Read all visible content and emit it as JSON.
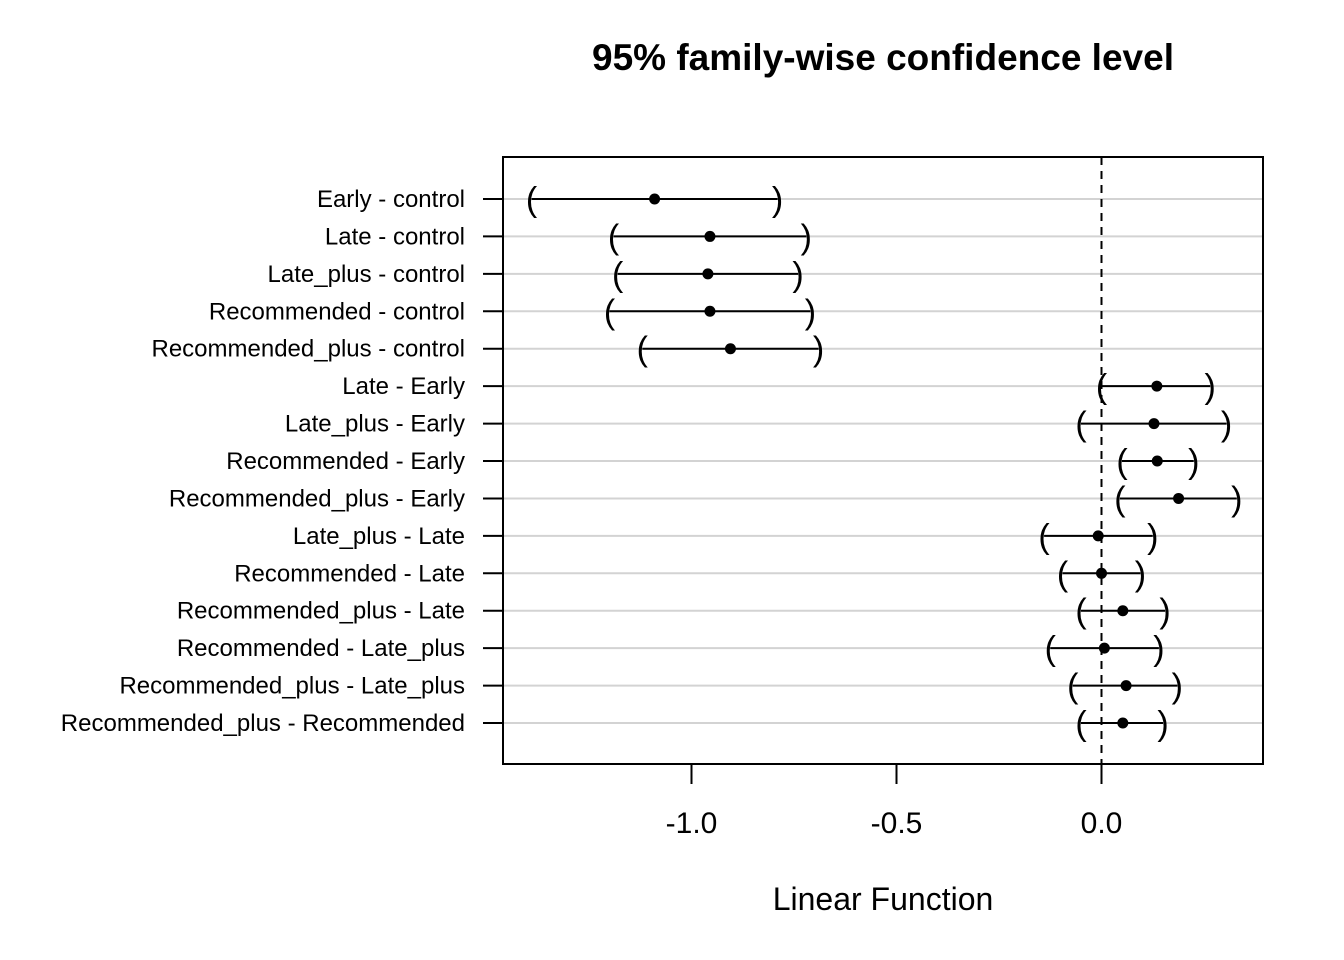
{
  "chart_data": {
    "type": "interval",
    "title": "95% family-wise confidence level",
    "xlabel": "Linear Function",
    "ylabel": "",
    "xlim": [
      -1.46,
      0.4
    ],
    "x_ticks": [
      -1.0,
      -0.5,
      0.0
    ],
    "x_tick_labels": [
      "-1.0",
      "-0.5",
      "0.0"
    ],
    "reference_line": 0.0,
    "grid": "horizontal",
    "comparisons": [
      {
        "label": "Early - control",
        "estimate": -1.09,
        "lower": -1.39,
        "upper": -0.79
      },
      {
        "label": "Late - control",
        "estimate": -0.955,
        "lower": -1.19,
        "upper": -0.72
      },
      {
        "label": "Late_plus - control",
        "estimate": -0.96,
        "lower": -1.18,
        "upper": -0.74
      },
      {
        "label": "Recommended - control",
        "estimate": -0.955,
        "lower": -1.2,
        "upper": -0.71
      },
      {
        "label": "Recommended_plus - control",
        "estimate": -0.905,
        "lower": -1.12,
        "upper": -0.69
      },
      {
        "label": "Late - Early",
        "estimate": 0.135,
        "lower": 0.0,
        "upper": 0.265
      },
      {
        "label": "Late_plus - Early",
        "estimate": 0.128,
        "lower": -0.05,
        "upper": 0.305
      },
      {
        "label": "Recommended - Early",
        "estimate": 0.136,
        "lower": 0.05,
        "upper": 0.225
      },
      {
        "label": "Recommended_plus - Early",
        "estimate": 0.188,
        "lower": 0.045,
        "upper": 0.33
      },
      {
        "label": "Late_plus - Late",
        "estimate": -0.008,
        "lower": -0.14,
        "upper": 0.125
      },
      {
        "label": "Recommended - Late",
        "estimate": 0.0,
        "lower": -0.095,
        "upper": 0.095
      },
      {
        "label": "Recommended_plus - Late",
        "estimate": 0.052,
        "lower": -0.05,
        "upper": 0.155
      },
      {
        "label": "Recommended - Late_plus",
        "estimate": 0.007,
        "lower": -0.125,
        "upper": 0.14
      },
      {
        "label": "Recommended_plus - Late_plus",
        "estimate": 0.06,
        "lower": -0.07,
        "upper": 0.185
      },
      {
        "label": "Recommended_plus - Recommended",
        "estimate": 0.052,
        "lower": -0.05,
        "upper": 0.15
      }
    ]
  }
}
